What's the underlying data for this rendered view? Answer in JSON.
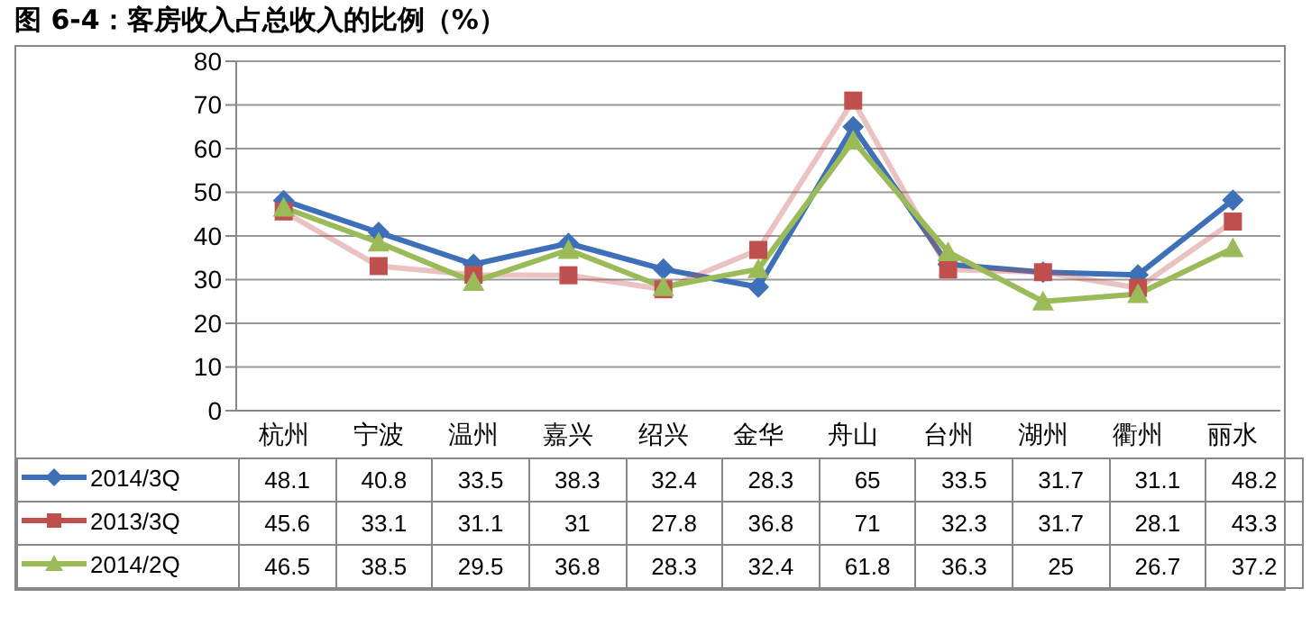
{
  "chart_data": {
    "type": "line",
    "title": "图 6-4：客房收入占总收入的比例（%）",
    "categories": [
      "杭州",
      "宁波",
      "温州",
      "嘉兴",
      "绍兴",
      "金华",
      "舟山",
      "台州",
      "湖州",
      "衢州",
      "丽水"
    ],
    "series": [
      {
        "name": "2014/3Q",
        "color": "#3d70b8",
        "marker": "diamond",
        "values": [
          48.1,
          40.8,
          33.5,
          38.3,
          32.4,
          28.3,
          65,
          33.5,
          31.7,
          31.1,
          48.2
        ]
      },
      {
        "name": "2013/3Q",
        "color": "#c0504d",
        "marker": "square",
        "values": [
          45.6,
          33.1,
          31.1,
          31,
          27.8,
          36.8,
          71,
          32.3,
          31.7,
          28.1,
          43.3
        ]
      },
      {
        "name": "2014/2Q",
        "color": "#9bbb59",
        "marker": "triangle",
        "values": [
          46.5,
          38.5,
          29.5,
          36.8,
          28.3,
          32.4,
          61.8,
          36.3,
          25,
          26.7,
          37.2
        ]
      }
    ],
    "ylim": [
      0,
      80
    ],
    "yticks": [
      0,
      10,
      20,
      30,
      40,
      50,
      60,
      70,
      80
    ],
    "grid": "y",
    "legend": "bottom",
    "data_labels": true
  }
}
